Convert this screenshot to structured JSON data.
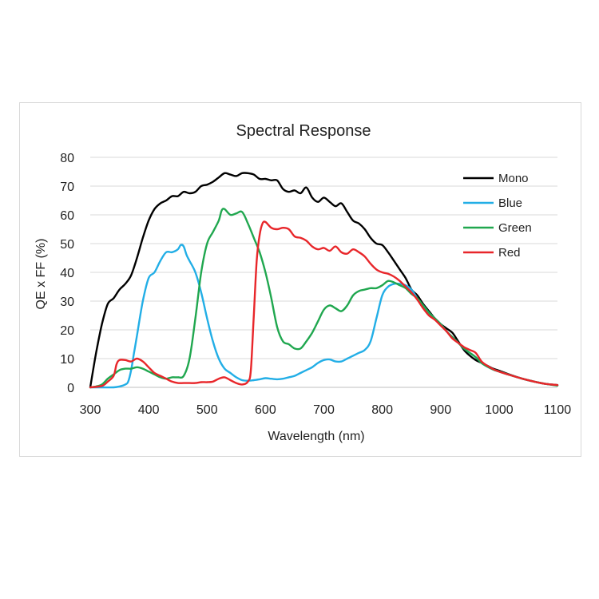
{
  "chart_data": {
    "type": "line",
    "title": "Spectral Response",
    "xlabel": "Wavelength (nm)",
    "ylabel": "QE x FF (%)",
    "xlim": [
      300,
      1100
    ],
    "ylim": [
      0,
      80
    ],
    "xticks": [
      300,
      400,
      500,
      600,
      700,
      800,
      900,
      1000,
      1100
    ],
    "yticks": [
      0,
      10,
      20,
      30,
      40,
      50,
      60,
      70,
      80
    ],
    "xtick_labels": [
      "300",
      "400",
      "500",
      "600",
      "700",
      "800",
      "900",
      "1000",
      "1100"
    ],
    "ytick_labels": [
      "0",
      "10",
      "20",
      "30",
      "40",
      "50",
      "60",
      "70",
      "80"
    ],
    "grid": "horizontal",
    "legend_position": "top-right",
    "series": [
      {
        "name": "Mono",
        "color": "#000000",
        "points": [
          [
            300,
            0
          ],
          [
            310,
            12
          ],
          [
            320,
            22
          ],
          [
            330,
            29
          ],
          [
            340,
            31
          ],
          [
            350,
            34
          ],
          [
            360,
            36
          ],
          [
            370,
            39
          ],
          [
            380,
            45
          ],
          [
            390,
            52
          ],
          [
            400,
            58
          ],
          [
            410,
            62
          ],
          [
            420,
            64
          ],
          [
            430,
            65
          ],
          [
            440,
            66.5
          ],
          [
            450,
            66.5
          ],
          [
            460,
            68
          ],
          [
            470,
            67.5
          ],
          [
            480,
            68
          ],
          [
            490,
            70
          ],
          [
            500,
            70.5
          ],
          [
            510,
            71.5
          ],
          [
            520,
            73
          ],
          [
            530,
            74.5
          ],
          [
            540,
            74
          ],
          [
            550,
            73.5
          ],
          [
            560,
            74.5
          ],
          [
            570,
            74.5
          ],
          [
            580,
            74
          ],
          [
            590,
            72.5
          ],
          [
            600,
            72.5
          ],
          [
            610,
            72
          ],
          [
            620,
            72
          ],
          [
            630,
            69
          ],
          [
            640,
            68
          ],
          [
            650,
            68.5
          ],
          [
            660,
            67.5
          ],
          [
            670,
            69.5
          ],
          [
            680,
            66
          ],
          [
            690,
            64.5
          ],
          [
            700,
            66
          ],
          [
            710,
            64.5
          ],
          [
            720,
            63
          ],
          [
            730,
            64
          ],
          [
            740,
            61
          ],
          [
            750,
            58
          ],
          [
            760,
            57
          ],
          [
            770,
            55
          ],
          [
            780,
            52
          ],
          [
            790,
            50
          ],
          [
            800,
            49.5
          ],
          [
            810,
            47
          ],
          [
            820,
            44
          ],
          [
            830,
            41
          ],
          [
            840,
            38
          ],
          [
            850,
            34
          ],
          [
            860,
            32
          ],
          [
            870,
            29
          ],
          [
            880,
            26.5
          ],
          [
            890,
            24
          ],
          [
            900,
            22
          ],
          [
            910,
            20.5
          ],
          [
            920,
            19
          ],
          [
            930,
            16
          ],
          [
            940,
            13
          ],
          [
            950,
            11
          ],
          [
            960,
            9.5
          ],
          [
            970,
            8.5
          ],
          [
            980,
            7.5
          ],
          [
            990,
            6.5
          ],
          [
            1000,
            5.8
          ],
          [
            1020,
            4.3
          ],
          [
            1040,
            3.0
          ],
          [
            1060,
            2.0
          ],
          [
            1080,
            1.2
          ],
          [
            1100,
            0.8
          ]
        ]
      },
      {
        "name": "Blue",
        "color": "#22aee6",
        "points": [
          [
            300,
            0
          ],
          [
            320,
            0
          ],
          [
            340,
            0
          ],
          [
            350,
            0.3
          ],
          [
            360,
            1
          ],
          [
            365,
            2
          ],
          [
            370,
            6
          ],
          [
            375,
            12
          ],
          [
            380,
            18
          ],
          [
            390,
            30
          ],
          [
            400,
            38
          ],
          [
            410,
            40
          ],
          [
            420,
            44
          ],
          [
            430,
            47
          ],
          [
            440,
            47
          ],
          [
            450,
            48
          ],
          [
            455,
            49.5
          ],
          [
            460,
            49
          ],
          [
            465,
            46
          ],
          [
            470,
            44
          ],
          [
            480,
            40
          ],
          [
            490,
            33
          ],
          [
            500,
            24
          ],
          [
            510,
            16
          ],
          [
            520,
            10
          ],
          [
            530,
            6.5
          ],
          [
            540,
            5
          ],
          [
            550,
            3.5
          ],
          [
            560,
            2.5
          ],
          [
            570,
            2.3
          ],
          [
            580,
            2.5
          ],
          [
            590,
            2.8
          ],
          [
            600,
            3.2
          ],
          [
            610,
            3
          ],
          [
            620,
            2.8
          ],
          [
            630,
            3
          ],
          [
            640,
            3.5
          ],
          [
            650,
            4
          ],
          [
            660,
            5
          ],
          [
            670,
            6
          ],
          [
            680,
            7
          ],
          [
            690,
            8.5
          ],
          [
            700,
            9.5
          ],
          [
            710,
            9.7
          ],
          [
            720,
            9
          ],
          [
            730,
            9
          ],
          [
            740,
            10
          ],
          [
            750,
            11
          ],
          [
            760,
            12
          ],
          [
            770,
            13
          ],
          [
            780,
            16
          ],
          [
            790,
            24
          ],
          [
            800,
            32
          ],
          [
            810,
            35
          ],
          [
            820,
            36
          ],
          [
            830,
            36
          ],
          [
            840,
            35.5
          ],
          [
            850,
            34
          ],
          [
            860,
            31
          ],
          [
            870,
            28.5
          ],
          [
            880,
            26
          ],
          [
            890,
            24
          ],
          [
            900,
            22
          ],
          [
            910,
            19.5
          ],
          [
            920,
            17.5
          ],
          [
            930,
            15.5
          ],
          [
            940,
            13.5
          ],
          [
            950,
            12
          ],
          [
            960,
            10.5
          ],
          [
            970,
            8.5
          ],
          [
            980,
            7.2
          ],
          [
            990,
            6.2
          ],
          [
            1000,
            5.5
          ],
          [
            1020,
            4.2
          ],
          [
            1040,
            3.0
          ],
          [
            1060,
            2.0
          ],
          [
            1080,
            1.2
          ],
          [
            1100,
            0.7
          ]
        ]
      },
      {
        "name": "Green",
        "color": "#20a74f",
        "points": [
          [
            300,
            0
          ],
          [
            310,
            0.3
          ],
          [
            320,
            1
          ],
          [
            330,
            3
          ],
          [
            340,
            4.5
          ],
          [
            350,
            6
          ],
          [
            360,
            6.5
          ],
          [
            370,
            6.5
          ],
          [
            380,
            7
          ],
          [
            390,
            6.5
          ],
          [
            400,
            5.5
          ],
          [
            410,
            4.5
          ],
          [
            420,
            3.5
          ],
          [
            430,
            3
          ],
          [
            440,
            3.5
          ],
          [
            450,
            3.5
          ],
          [
            460,
            4
          ],
          [
            470,
            10
          ],
          [
            480,
            24
          ],
          [
            490,
            40
          ],
          [
            500,
            50
          ],
          [
            510,
            54
          ],
          [
            520,
            58
          ],
          [
            525,
            61.5
          ],
          [
            530,
            62
          ],
          [
            540,
            60
          ],
          [
            550,
            60.5
          ],
          [
            560,
            61
          ],
          [
            570,
            57
          ],
          [
            580,
            52
          ],
          [
            590,
            47
          ],
          [
            600,
            40
          ],
          [
            610,
            31
          ],
          [
            620,
            21
          ],
          [
            630,
            16
          ],
          [
            640,
            15
          ],
          [
            650,
            13.5
          ],
          [
            660,
            13.5
          ],
          [
            670,
            16
          ],
          [
            680,
            19
          ],
          [
            690,
            23
          ],
          [
            700,
            27
          ],
          [
            710,
            28.5
          ],
          [
            720,
            27.5
          ],
          [
            730,
            26.5
          ],
          [
            740,
            28.5
          ],
          [
            750,
            32
          ],
          [
            760,
            33.5
          ],
          [
            770,
            34
          ],
          [
            780,
            34.5
          ],
          [
            790,
            34.5
          ],
          [
            800,
            35.5
          ],
          [
            810,
            37
          ],
          [
            820,
            36.5
          ],
          [
            830,
            35.5
          ],
          [
            840,
            34.5
          ],
          [
            850,
            32.5
          ],
          [
            860,
            31
          ],
          [
            870,
            28.5
          ],
          [
            880,
            26
          ],
          [
            890,
            24
          ],
          [
            900,
            22
          ],
          [
            910,
            19.5
          ],
          [
            920,
            17.5
          ],
          [
            930,
            15.5
          ],
          [
            940,
            13.5
          ],
          [
            950,
            12
          ],
          [
            960,
            10.5
          ],
          [
            970,
            8.5
          ],
          [
            980,
            7.2
          ],
          [
            990,
            6.2
          ],
          [
            1000,
            5.5
          ],
          [
            1020,
            4.2
          ],
          [
            1040,
            3.0
          ],
          [
            1060,
            2.0
          ],
          [
            1080,
            1.2
          ],
          [
            1100,
            0.6
          ]
        ]
      },
      {
        "name": "Red",
        "color": "#e8262a",
        "points": [
          [
            300,
            0
          ],
          [
            320,
            0.5
          ],
          [
            330,
            2
          ],
          [
            340,
            4
          ],
          [
            345,
            8
          ],
          [
            350,
            9.5
          ],
          [
            360,
            9.5
          ],
          [
            370,
            9
          ],
          [
            380,
            10
          ],
          [
            390,
            9
          ],
          [
            400,
            7
          ],
          [
            410,
            5
          ],
          [
            420,
            4
          ],
          [
            430,
            3
          ],
          [
            440,
            2
          ],
          [
            450,
            1.5
          ],
          [
            460,
            1.5
          ],
          [
            470,
            1.5
          ],
          [
            480,
            1.5
          ],
          [
            490,
            1.8
          ],
          [
            500,
            1.8
          ],
          [
            510,
            2
          ],
          [
            520,
            3
          ],
          [
            530,
            3.5
          ],
          [
            540,
            2.5
          ],
          [
            550,
            1.5
          ],
          [
            560,
            1
          ],
          [
            570,
            2
          ],
          [
            575,
            6
          ],
          [
            580,
            25
          ],
          [
            585,
            44
          ],
          [
            590,
            53
          ],
          [
            595,
            57
          ],
          [
            600,
            57.5
          ],
          [
            610,
            55.5
          ],
          [
            620,
            55
          ],
          [
            630,
            55.5
          ],
          [
            640,
            55
          ],
          [
            650,
            52.5
          ],
          [
            660,
            52
          ],
          [
            670,
            51
          ],
          [
            680,
            49
          ],
          [
            690,
            48
          ],
          [
            700,
            48.5
          ],
          [
            710,
            47.5
          ],
          [
            720,
            49
          ],
          [
            730,
            47
          ],
          [
            740,
            46.5
          ],
          [
            750,
            48
          ],
          [
            760,
            47
          ],
          [
            770,
            45.5
          ],
          [
            780,
            43
          ],
          [
            790,
            41
          ],
          [
            800,
            40
          ],
          [
            810,
            39.5
          ],
          [
            820,
            38.5
          ],
          [
            830,
            37
          ],
          [
            840,
            35
          ],
          [
            850,
            33
          ],
          [
            860,
            30.5
          ],
          [
            870,
            27.5
          ],
          [
            880,
            25
          ],
          [
            890,
            23.5
          ],
          [
            900,
            21.5
          ],
          [
            910,
            19.5
          ],
          [
            920,
            17
          ],
          [
            930,
            15.5
          ],
          [
            940,
            14
          ],
          [
            950,
            13
          ],
          [
            960,
            12
          ],
          [
            970,
            9
          ],
          [
            980,
            7.5
          ],
          [
            990,
            6.3
          ],
          [
            1000,
            5.5
          ],
          [
            1020,
            4.2
          ],
          [
            1040,
            3.0
          ],
          [
            1060,
            2.0
          ],
          [
            1080,
            1.2
          ],
          [
            1100,
            0.8
          ]
        ]
      }
    ]
  }
}
